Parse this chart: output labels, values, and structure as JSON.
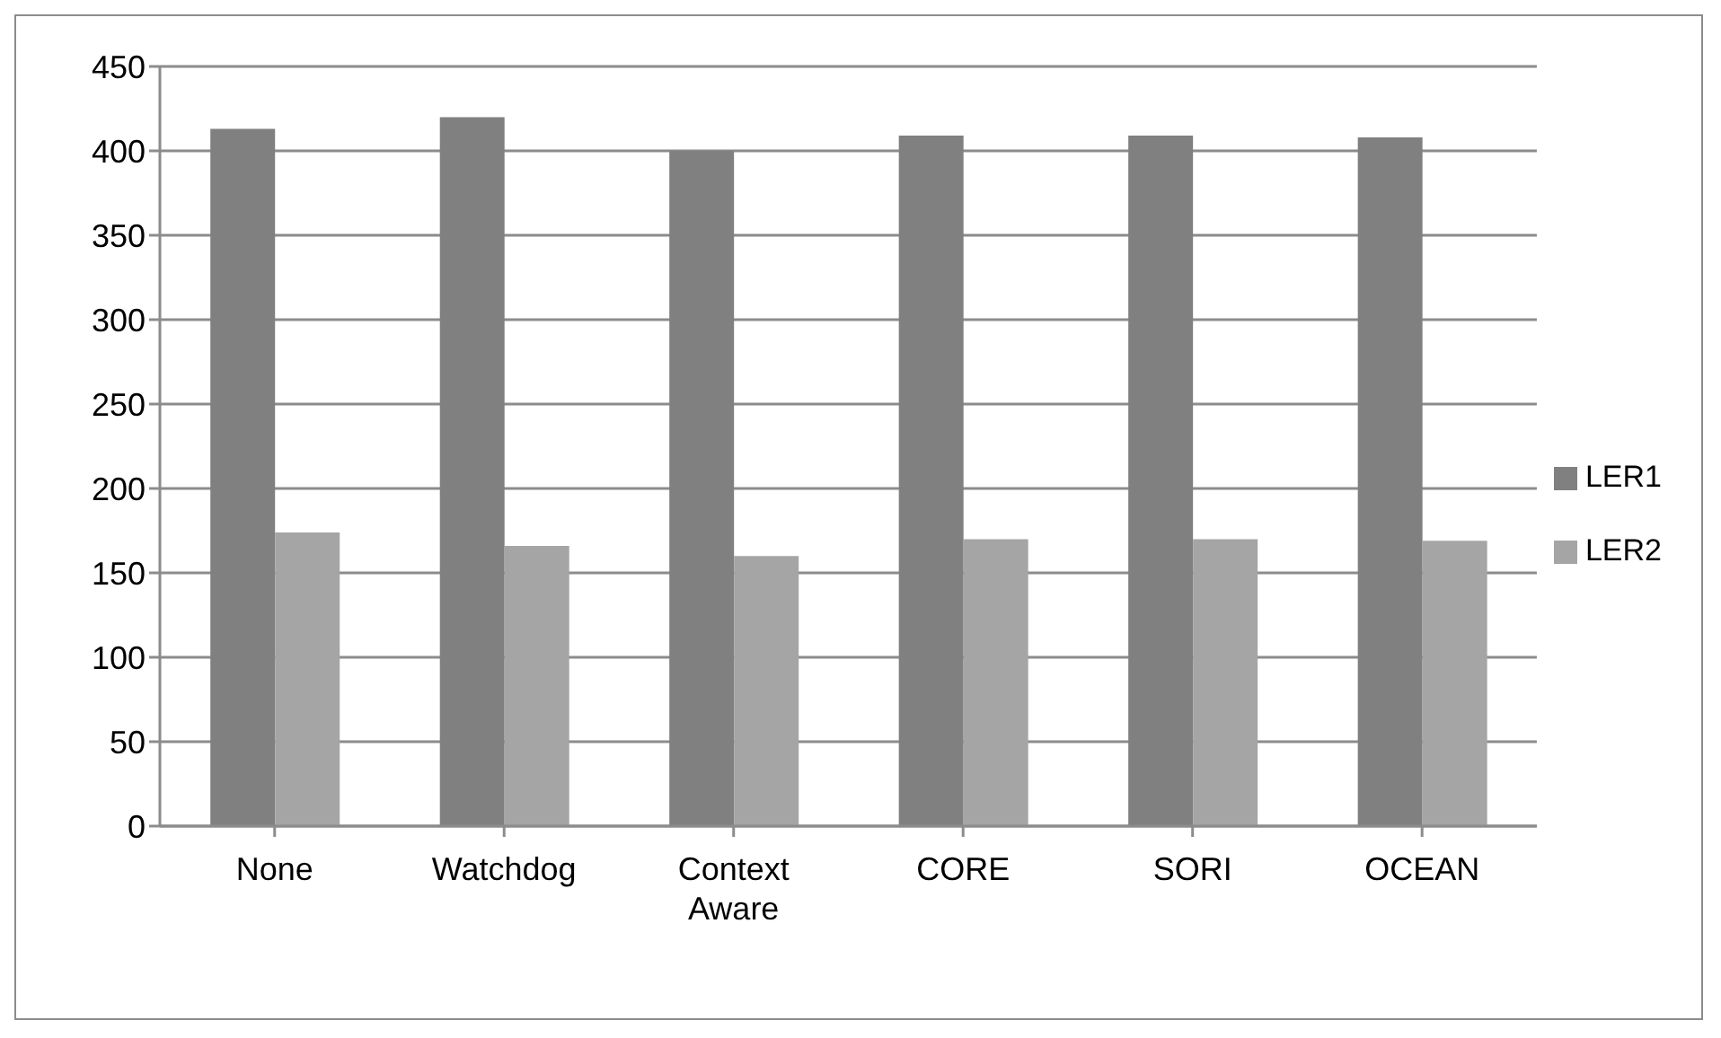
{
  "chart_data": {
    "type": "bar",
    "categories": [
      "None",
      "Watchdog",
      "Context Aware",
      "CORE",
      "SORI",
      "OCEAN"
    ],
    "series": [
      {
        "name": "LER1",
        "color": "#808080",
        "values": [
          413,
          420,
          400,
          409,
          409,
          408
        ]
      },
      {
        "name": "LER2",
        "color": "#a5a5a5",
        "values": [
          174,
          166,
          160,
          170,
          170,
          169
        ]
      }
    ],
    "ylim": [
      0,
      450
    ],
    "yticks": [
      0,
      50,
      100,
      150,
      200,
      250,
      300,
      350,
      400,
      450
    ],
    "grid": "y",
    "legend": "right"
  }
}
